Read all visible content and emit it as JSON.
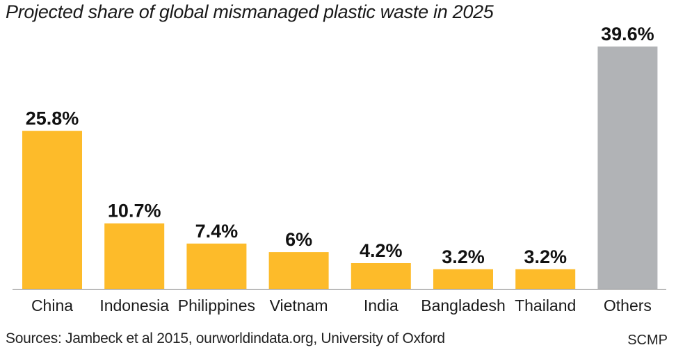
{
  "chart_data": {
    "type": "bar",
    "title": "Projected share of global mismanaged plastic waste in 2025",
    "categories": [
      "China",
      "Indonesia",
      "Philippines",
      "Vietnam",
      "India",
      "Bangladesh",
      "Thailand",
      "Others"
    ],
    "values": [
      25.8,
      10.7,
      7.4,
      6,
      4.2,
      3.2,
      3.2,
      39.6
    ],
    "value_labels": [
      "25.8%",
      "10.7%",
      "7.4%",
      "6%",
      "4.2%",
      "3.2%",
      "3.2%",
      "39.6%"
    ],
    "unit": "%",
    "ylim": [
      0,
      39.6
    ],
    "grid": false,
    "legend": "none",
    "colors": {
      "countries": "#FDBB2A",
      "others": "#B1B3B6",
      "baseline": "#7a7a7a"
    }
  },
  "footer": {
    "source": "Sources: Jambeck et al 2015, ourworldindata.org, University of Oxford",
    "brand": "SCMP"
  }
}
